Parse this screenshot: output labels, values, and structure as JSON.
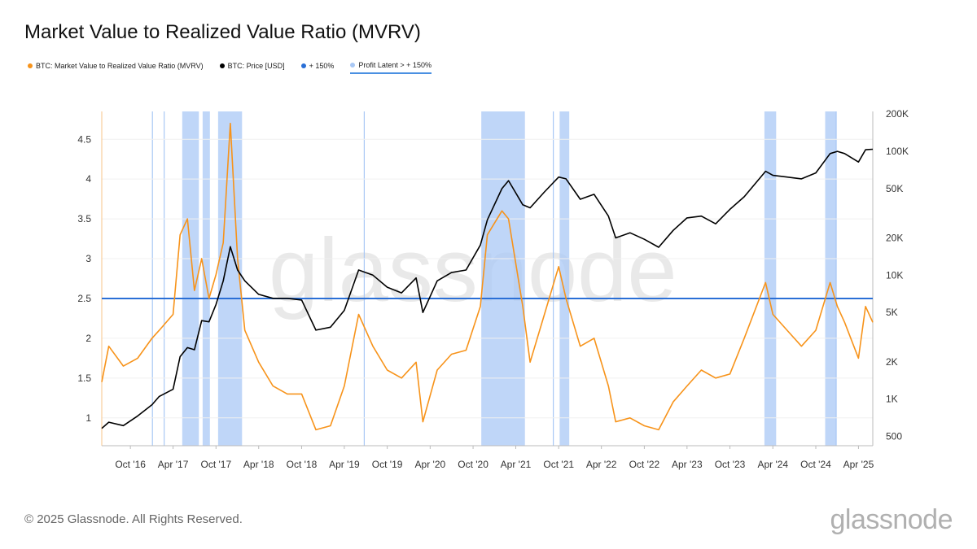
{
  "title": "Market Value to Realized Value Ratio (MVRV)",
  "legend": [
    {
      "label": "BTC: Market Value to Realized Value Ratio (MVRV)",
      "color": "#f7931a"
    },
    {
      "label": "BTC: Price [USD]",
      "color": "#000000"
    },
    {
      "label": "+ 150%",
      "color": "#2a6fd6"
    },
    {
      "label": "Profit Latent > + 150%",
      "color": "#a9c8f5"
    }
  ],
  "watermark": "glassnode",
  "footer": {
    "copyright": "© 2025 Glassnode. All Rights Reserved.",
    "logo": "glassnode"
  },
  "chart_data": {
    "type": "line",
    "title": "Market Value to Realized Value Ratio (MVRV)",
    "x_ticks": [
      "Oct '16",
      "Apr '17",
      "Oct '17",
      "Apr '18",
      "Oct '18",
      "Apr '19",
      "Oct '19",
      "Apr '20",
      "Oct '20",
      "Apr '21",
      "Oct '21",
      "Apr '22",
      "Oct '22",
      "Apr '23",
      "Oct '23",
      "Apr '24",
      "Oct '24",
      "Apr '25"
    ],
    "xlim": [
      "2016-06",
      "2025-06"
    ],
    "y_left": {
      "ticks": [
        "1",
        "1.5",
        "2",
        "2.5",
        "3",
        "3.5",
        "4",
        "4.5"
      ],
      "ylim": [
        0.65,
        4.85
      ]
    },
    "y_right": {
      "scale": "log",
      "ticks": [
        "500",
        "1K",
        "2K",
        "5K",
        "10K",
        "20K",
        "50K",
        "100K",
        "200K"
      ],
      "ylim": [
        420,
        210000
      ]
    },
    "threshold": {
      "name": "+ 150%",
      "value": 2.5,
      "color": "#2a6fd6"
    },
    "series": [
      {
        "name": "BTC: Market Value to Realized Value Ratio (MVRV)",
        "axis": "left",
        "color": "#f7931a",
        "x": [
          "2016-06",
          "2016-07",
          "2016-09",
          "2016-11",
          "2017-01",
          "2017-02",
          "2017-04",
          "2017-05",
          "2017-06",
          "2017-07",
          "2017-08",
          "2017-09",
          "2017-10",
          "2017-11",
          "2017-12",
          "2018-01",
          "2018-02",
          "2018-04",
          "2018-06",
          "2018-08",
          "2018-10",
          "2018-12",
          "2019-02",
          "2019-04",
          "2019-06",
          "2019-08",
          "2019-10",
          "2019-12",
          "2020-02",
          "2020-03",
          "2020-05",
          "2020-07",
          "2020-09",
          "2020-11",
          "2020-12",
          "2021-02",
          "2021-03",
          "2021-05",
          "2021-06",
          "2021-08",
          "2021-10",
          "2021-11",
          "2022-01",
          "2022-03",
          "2022-05",
          "2022-06",
          "2022-08",
          "2022-10",
          "2022-12",
          "2023-02",
          "2023-04",
          "2023-06",
          "2023-08",
          "2023-10",
          "2023-12",
          "2024-03",
          "2024-04",
          "2024-06",
          "2024-08",
          "2024-10",
          "2024-12",
          "2025-01",
          "2025-02",
          "2025-04",
          "2025-05",
          "2025-06"
        ],
        "y": [
          1.45,
          1.9,
          1.65,
          1.75,
          2.0,
          2.1,
          2.3,
          3.3,
          3.5,
          2.6,
          3.0,
          2.5,
          2.8,
          3.2,
          4.7,
          3.0,
          2.1,
          1.7,
          1.4,
          1.3,
          1.3,
          0.85,
          0.9,
          1.4,
          2.3,
          1.9,
          1.6,
          1.5,
          1.7,
          0.95,
          1.6,
          1.8,
          1.85,
          2.4,
          3.3,
          3.6,
          3.5,
          2.4,
          1.7,
          2.3,
          2.9,
          2.5,
          1.9,
          2.0,
          1.4,
          0.95,
          1.0,
          0.9,
          0.85,
          1.2,
          1.4,
          1.6,
          1.5,
          1.55,
          2.0,
          2.7,
          2.3,
          2.1,
          1.9,
          2.1,
          2.7,
          2.4,
          2.2,
          1.75,
          2.4,
          2.2
        ]
      },
      {
        "name": "BTC: Price [USD]",
        "axis": "right",
        "color": "#000000",
        "x": [
          "2016-06",
          "2016-07",
          "2016-09",
          "2016-11",
          "2017-01",
          "2017-02",
          "2017-04",
          "2017-05",
          "2017-06",
          "2017-07",
          "2017-08",
          "2017-09",
          "2017-10",
          "2017-11",
          "2017-12",
          "2018-01",
          "2018-02",
          "2018-04",
          "2018-06",
          "2018-08",
          "2018-10",
          "2018-12",
          "2019-02",
          "2019-04",
          "2019-06",
          "2019-08",
          "2019-10",
          "2019-12",
          "2020-02",
          "2020-03",
          "2020-05",
          "2020-07",
          "2020-09",
          "2020-11",
          "2020-12",
          "2021-02",
          "2021-03",
          "2021-05",
          "2021-06",
          "2021-08",
          "2021-10",
          "2021-11",
          "2022-01",
          "2022-03",
          "2022-05",
          "2022-06",
          "2022-08",
          "2022-10",
          "2022-12",
          "2023-02",
          "2023-04",
          "2023-06",
          "2023-08",
          "2023-10",
          "2023-12",
          "2024-03",
          "2024-04",
          "2024-06",
          "2024-08",
          "2024-10",
          "2024-12",
          "2025-01",
          "2025-02",
          "2025-04",
          "2025-05",
          "2025-06"
        ],
        "y": [
          580,
          650,
          610,
          730,
          900,
          1050,
          1200,
          2200,
          2600,
          2500,
          4300,
          4200,
          5800,
          9000,
          17000,
          11000,
          9000,
          7000,
          6500,
          6500,
          6300,
          3600,
          3800,
          5200,
          11000,
          10000,
          8000,
          7200,
          9500,
          5000,
          9000,
          10500,
          11000,
          17500,
          28000,
          50000,
          58000,
          37000,
          35000,
          47000,
          62000,
          60000,
          41000,
          45000,
          30000,
          20000,
          22000,
          19500,
          16800,
          23000,
          29000,
          30000,
          26000,
          34000,
          43000,
          69000,
          64000,
          62000,
          60000,
          67000,
          96000,
          100000,
          96000,
          82000,
          103000,
          104000
        ]
      }
    ],
    "shaded_periods": {
      "name": "Profit Latent > + 150%",
      "color": "#a9c8f5",
      "ranges": [
        [
          "2017-05-10",
          "2017-07-20"
        ],
        [
          "2017-08-05",
          "2017-09-05"
        ],
        [
          "2017-10-10",
          "2018-01-20"
        ],
        [
          "2020-11-05",
          "2021-05-10"
        ],
        [
          "2021-10-05",
          "2021-11-15"
        ],
        [
          "2024-02-25",
          "2024-04-15"
        ],
        [
          "2024-11-10",
          "2024-12-25"
        ]
      ],
      "lines": [
        "2017-01-03",
        "2017-02-22",
        "2019-06-25",
        "2021-09-08",
        "2024-12-27"
      ]
    }
  }
}
